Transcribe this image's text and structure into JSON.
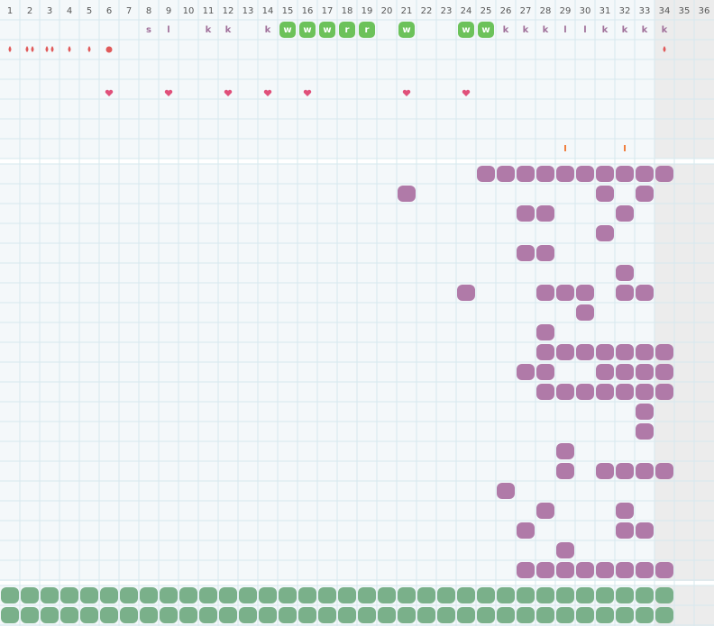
{
  "header": {
    "days": [
      1,
      2,
      3,
      4,
      5,
      6,
      7,
      8,
      9,
      10,
      11,
      12,
      13,
      14,
      15,
      16,
      17,
      18,
      19,
      20,
      21,
      22,
      23,
      24,
      25,
      26,
      27,
      28,
      29,
      30,
      31,
      32,
      33,
      34,
      35,
      36
    ]
  },
  "letters": [
    "s",
    "l",
    "k",
    "k",
    "k",
    "w",
    "w",
    "w",
    "r",
    "r",
    "w",
    "w",
    "w",
    "k",
    "k",
    "k",
    "l",
    "l",
    "k",
    "k",
    "k",
    "k"
  ]
}
